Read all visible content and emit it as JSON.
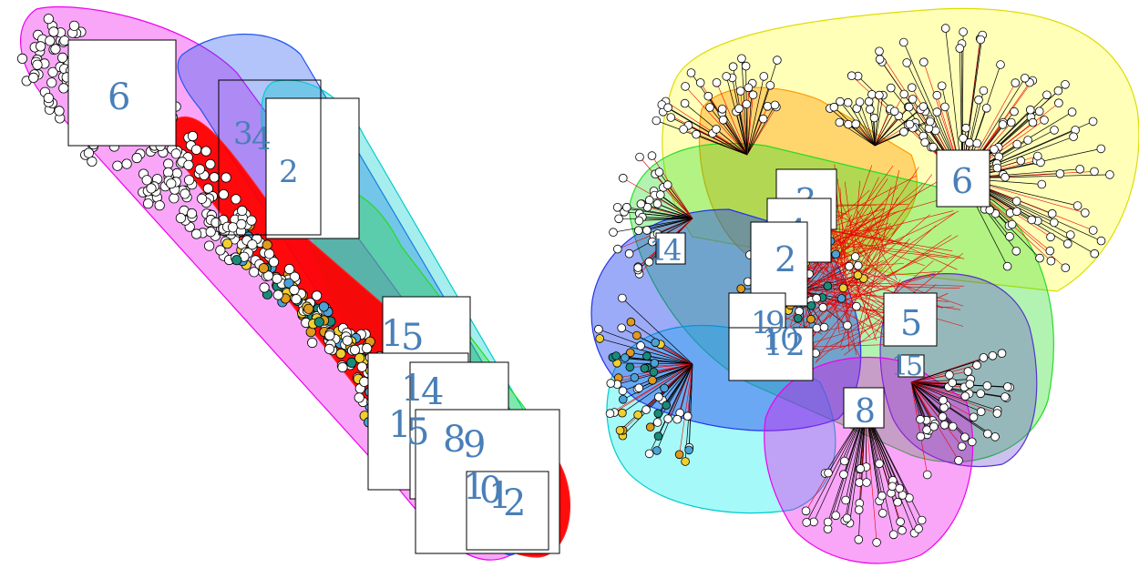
{
  "left_panel": {
    "cluster_labels": [
      "6",
      "3",
      "4",
      "2",
      "1",
      "5",
      "1",
      "4",
      "1",
      "5",
      "8",
      "9",
      "1",
      "0",
      "1",
      "2"
    ]
  },
  "right_panel": {
    "cluster_labels": [
      "6",
      "3",
      "4",
      "2",
      "1",
      "4",
      "1",
      "9",
      "1",
      "0",
      "1",
      "2",
      "5",
      "1",
      "5",
      "8"
    ]
  },
  "colors": {
    "node_white": "#ffffff",
    "node_orange": "#e09a1c",
    "node_blue": "#4aa3d8",
    "node_teal": "#1a8a7a",
    "node_yellow": "#f0d030",
    "edge_red": "#ee0000",
    "label_text": "#4a7fb8",
    "hull_magenta": "#ee00ee",
    "hull_blue": "#2255ee",
    "hull_cyan": "#00cccc",
    "hull_green": "#22dd22",
    "hull_red": "#ff2222",
    "hull_yellow": "#ffff33",
    "hull_orange": "#ff9900",
    "hull_purple": "#5533cc"
  }
}
